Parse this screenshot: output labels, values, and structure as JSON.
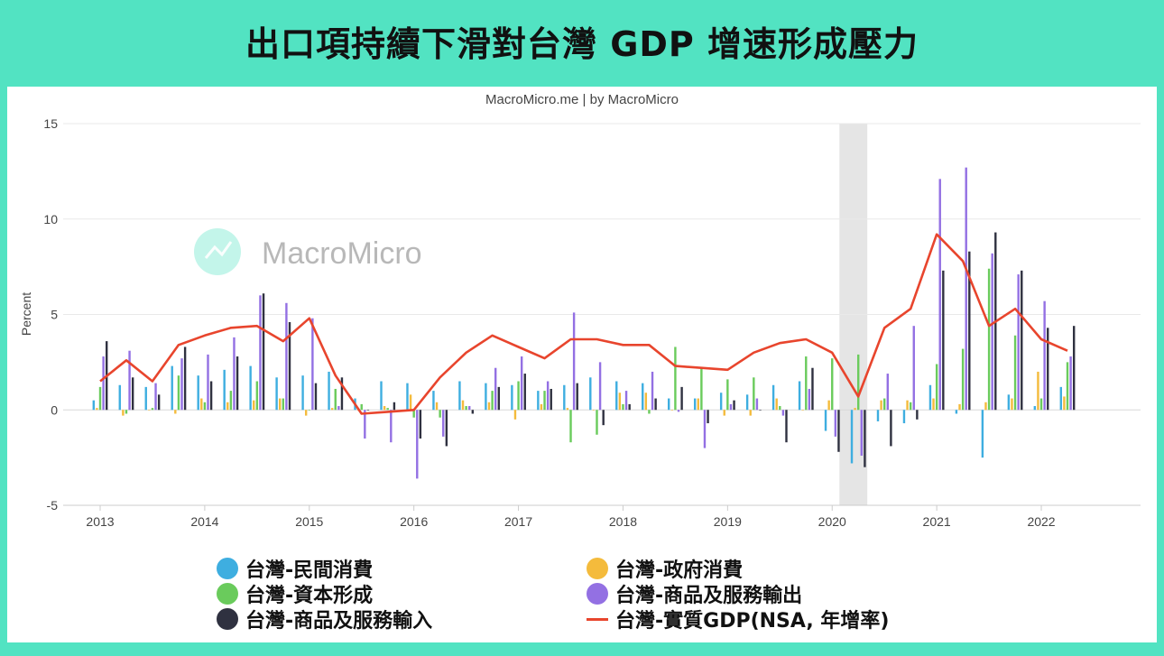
{
  "page": {
    "title": "出口項持續下滑對台灣 GDP 增速形成壓力",
    "source": "MacroMicro.me | by MacroMicro",
    "watermark": "MacroMicro",
    "background_color": "#52e3c2"
  },
  "chart_data": {
    "type": "bar",
    "title": "出口項持續下滑對台灣 GDP 增速形成壓力",
    "ylabel": "Percent",
    "ylim": [
      -5,
      15
    ],
    "yticks": [
      -5,
      0,
      5,
      10,
      15
    ],
    "xticks": [
      "2013",
      "2014",
      "2015",
      "2016",
      "2017",
      "2018",
      "2019",
      "2020",
      "2021",
      "2022"
    ],
    "grid": true,
    "legend_position": "bottom",
    "shaded_region": [
      "2020Q1",
      "2020Q2"
    ],
    "categories": [
      "2013Q1",
      "2013Q2",
      "2013Q3",
      "2013Q4",
      "2014Q1",
      "2014Q2",
      "2014Q3",
      "2014Q4",
      "2015Q1",
      "2015Q2",
      "2015Q3",
      "2015Q4",
      "2016Q1",
      "2016Q2",
      "2016Q3",
      "2016Q4",
      "2017Q1",
      "2017Q2",
      "2017Q3",
      "2017Q4",
      "2018Q1",
      "2018Q2",
      "2018Q3",
      "2018Q4",
      "2019Q1",
      "2019Q2",
      "2019Q3",
      "2019Q4",
      "2020Q1",
      "2020Q2",
      "2020Q3",
      "2020Q4",
      "2021Q1",
      "2021Q2",
      "2021Q3",
      "2021Q4",
      "2022Q1",
      "2022Q2"
    ],
    "series": [
      {
        "name": "台灣-民間消費",
        "type": "bar",
        "color": "#3eaee0",
        "values": [
          0.5,
          1.3,
          1.2,
          2.3,
          1.8,
          2.1,
          2.3,
          1.7,
          1.8,
          2.0,
          0.6,
          1.5,
          1.4,
          1.0,
          1.5,
          1.4,
          1.3,
          1.0,
          1.3,
          1.7,
          1.5,
          1.4,
          0.6,
          0.6,
          0.9,
          0.8,
          1.3,
          1.5,
          -1.1,
          -2.8,
          -0.6,
          -0.7,
          1.3,
          -0.2,
          -2.5,
          0.8,
          0.2,
          1.2
        ]
      },
      {
        "name": "台灣-政府消費",
        "type": "bar",
        "color": "#f4bb3c",
        "values": [
          0.1,
          -0.3,
          0.0,
          -0.2,
          0.6,
          0.4,
          0.5,
          0.6,
          -0.3,
          0.1,
          0.0,
          0.2,
          0.8,
          0.4,
          0.5,
          0.4,
          -0.5,
          0.3,
          0.1,
          0.0,
          0.9,
          0.9,
          0.0,
          0.6,
          -0.3,
          -0.3,
          0.6,
          0.0,
          0.5,
          0.1,
          0.5,
          0.5,
          0.6,
          0.3,
          0.4,
          0.6,
          2.0,
          0.7
        ]
      },
      {
        "name": "台灣-資本形成",
        "type": "bar",
        "color": "#6acb5c",
        "values": [
          1.2,
          -0.2,
          0.1,
          1.8,
          0.4,
          1.0,
          1.5,
          0.6,
          0.0,
          1.1,
          0.3,
          0.1,
          -0.4,
          -0.4,
          0.2,
          1.0,
          1.5,
          1.0,
          -1.7,
          -1.3,
          0.3,
          -0.2,
          3.3,
          2.2,
          1.6,
          1.7,
          0.2,
          2.8,
          2.7,
          2.9,
          0.6,
          0.4,
          2.4,
          3.2,
          7.4,
          3.9,
          0.6,
          2.5
        ]
      },
      {
        "name": "台灣-商品及服務輸出",
        "type": "bar",
        "color": "#9370e3",
        "values": [
          2.8,
          3.1,
          1.4,
          2.7,
          2.9,
          3.8,
          6.0,
          5.6,
          4.8,
          0.2,
          -1.5,
          -1.7,
          -3.6,
          -1.4,
          0.2,
          2.2,
          2.8,
          1.5,
          5.1,
          2.5,
          1.0,
          2.0,
          -0.1,
          -2.0,
          0.3,
          0.6,
          -0.3,
          1.1,
          -1.4,
          -2.4,
          1.9,
          4.4,
          12.1,
          12.7,
          8.2,
          7.1,
          5.7,
          2.8
        ]
      },
      {
        "name": "台灣-商品及服務輸入",
        "type": "bar",
        "color": "#2f3140",
        "values": [
          3.6,
          1.7,
          0.8,
          3.3,
          1.5,
          2.8,
          6.1,
          4.6,
          1.4,
          1.7,
          0.0,
          0.4,
          -1.5,
          -1.9,
          -0.2,
          1.2,
          1.9,
          1.1,
          1.4,
          -0.8,
          0.3,
          0.6,
          1.2,
          -0.7,
          0.5,
          0.0,
          -1.7,
          2.2,
          -2.2,
          -3.0,
          -1.9,
          -0.5,
          7.3,
          8.3,
          9.3,
          7.3,
          4.3,
          4.4
        ]
      },
      {
        "name": "台灣-實質GDP(NSA, 年增率)",
        "type": "line",
        "color": "#e8452d",
        "values": [
          1.5,
          2.6,
          1.5,
          3.4,
          3.9,
          4.3,
          4.4,
          3.6,
          4.8,
          1.8,
          -0.2,
          -0.1,
          0.0,
          1.7,
          3.0,
          3.9,
          3.3,
          2.7,
          3.7,
          3.7,
          3.4,
          3.4,
          2.3,
          2.2,
          2.1,
          3.0,
          3.5,
          3.7,
          3.0,
          0.7,
          4.3,
          5.3,
          9.2,
          7.8,
          4.4,
          5.3,
          3.7,
          3.1
        ]
      }
    ]
  }
}
